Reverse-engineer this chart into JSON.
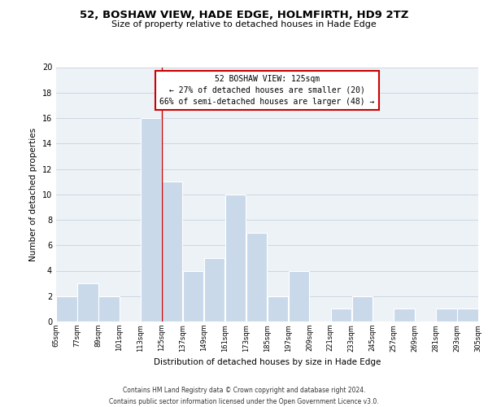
{
  "title": "52, BOSHAW VIEW, HADE EDGE, HOLMFIRTH, HD9 2TZ",
  "subtitle": "Size of property relative to detached houses in Hade Edge",
  "xlabel": "Distribution of detached houses by size in Hade Edge",
  "ylabel": "Number of detached properties",
  "bin_edges": [
    65,
    77,
    89,
    101,
    113,
    125,
    137,
    149,
    161,
    173,
    185,
    197,
    209,
    221,
    233,
    245,
    257,
    269,
    281,
    293,
    305
  ],
  "counts": [
    2,
    3,
    2,
    0,
    16,
    11,
    4,
    5,
    10,
    7,
    2,
    4,
    0,
    1,
    2,
    0,
    1,
    0,
    1,
    1
  ],
  "bar_color": "#c9d9ea",
  "bar_edge_color": "#ffffff",
  "property_size": 125,
  "property_line_color": "#cc0000",
  "annotation_line1": "52 BOSHAW VIEW: 125sqm",
  "annotation_line2": "← 27% of detached houses are smaller (20)",
  "annotation_line3": "66% of semi-detached houses are larger (48) →",
  "annotation_box_edge_color": "#cc0000",
  "ylim": [
    0,
    20
  ],
  "yticks": [
    0,
    2,
    4,
    6,
    8,
    10,
    12,
    14,
    16,
    18,
    20
  ],
  "tick_labels": [
    "65sqm",
    "77sqm",
    "89sqm",
    "101sqm",
    "113sqm",
    "125sqm",
    "137sqm",
    "149sqm",
    "161sqm",
    "173sqm",
    "185sqm",
    "197sqm",
    "209sqm",
    "221sqm",
    "233sqm",
    "245sqm",
    "257sqm",
    "269sqm",
    "281sqm",
    "293sqm",
    "305sqm"
  ],
  "footer_text": "Contains HM Land Registry data © Crown copyright and database right 2024.\nContains public sector information licensed under the Open Government Licence v3.0.",
  "grid_color": "#ccd6e0",
  "background_color": "#edf2f7"
}
